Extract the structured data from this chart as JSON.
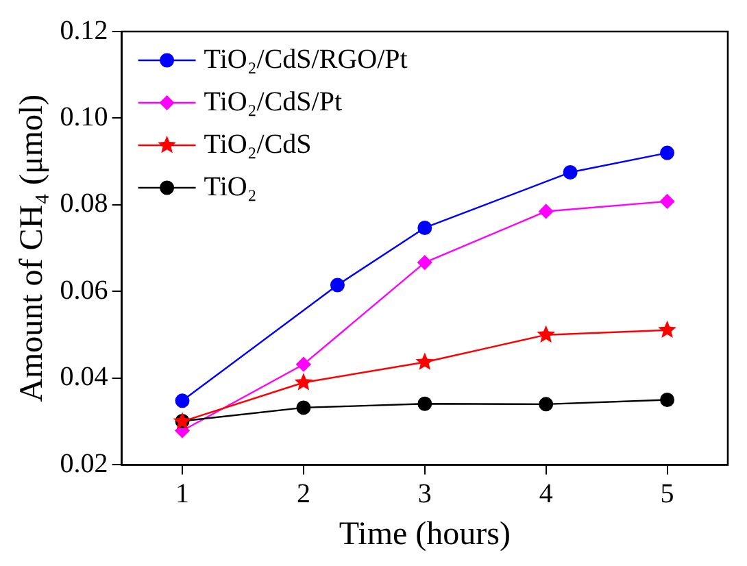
{
  "chart_data": {
    "type": "line",
    "xlabel": "Time (hours)",
    "ylabel": "Amount of CH₄ (μmol)",
    "xlim": [
      0.5,
      5.5
    ],
    "xticks": [
      1,
      2,
      3,
      4,
      5
    ],
    "ylim": [
      0.02,
      0.12
    ],
    "yticks": [
      0.02,
      0.04,
      0.06,
      0.08,
      {
        "value": 0.1,
        "label": "0.10"
      },
      0.12
    ],
    "grid": false,
    "legend": "top left",
    "line_style": "solid",
    "series": [
      {
        "name": "TiO₂/CdS/RGO/Pt",
        "color": "#0000ff",
        "marker": "circle",
        "x": [
          1,
          2.28,
          3,
          4.2,
          5
        ],
        "values": [
          0.0348,
          0.0615,
          0.0747,
          0.0875,
          0.092
        ]
      },
      {
        "name": "TiO₂/CdS/Pt",
        "color": "#ff00ff",
        "marker": "diamond",
        "x": [
          1,
          2,
          3,
          4,
          5
        ],
        "values": [
          0.0279,
          0.0432,
          0.0667,
          0.0785,
          0.0808
        ]
      },
      {
        "name": "TiO₂/CdS",
        "color": "#ff0000",
        "marker": "star",
        "x": [
          1,
          2,
          3,
          4,
          5
        ],
        "values": [
          0.03,
          0.039,
          0.0437,
          0.05,
          0.0511
        ]
      },
      {
        "name": "TiO₂",
        "color": "#000000",
        "marker": "circle",
        "x": [
          1,
          2,
          3,
          4,
          5
        ],
        "values": [
          0.0301,
          0.0332,
          0.0341,
          0.034,
          0.035
        ]
      }
    ]
  }
}
